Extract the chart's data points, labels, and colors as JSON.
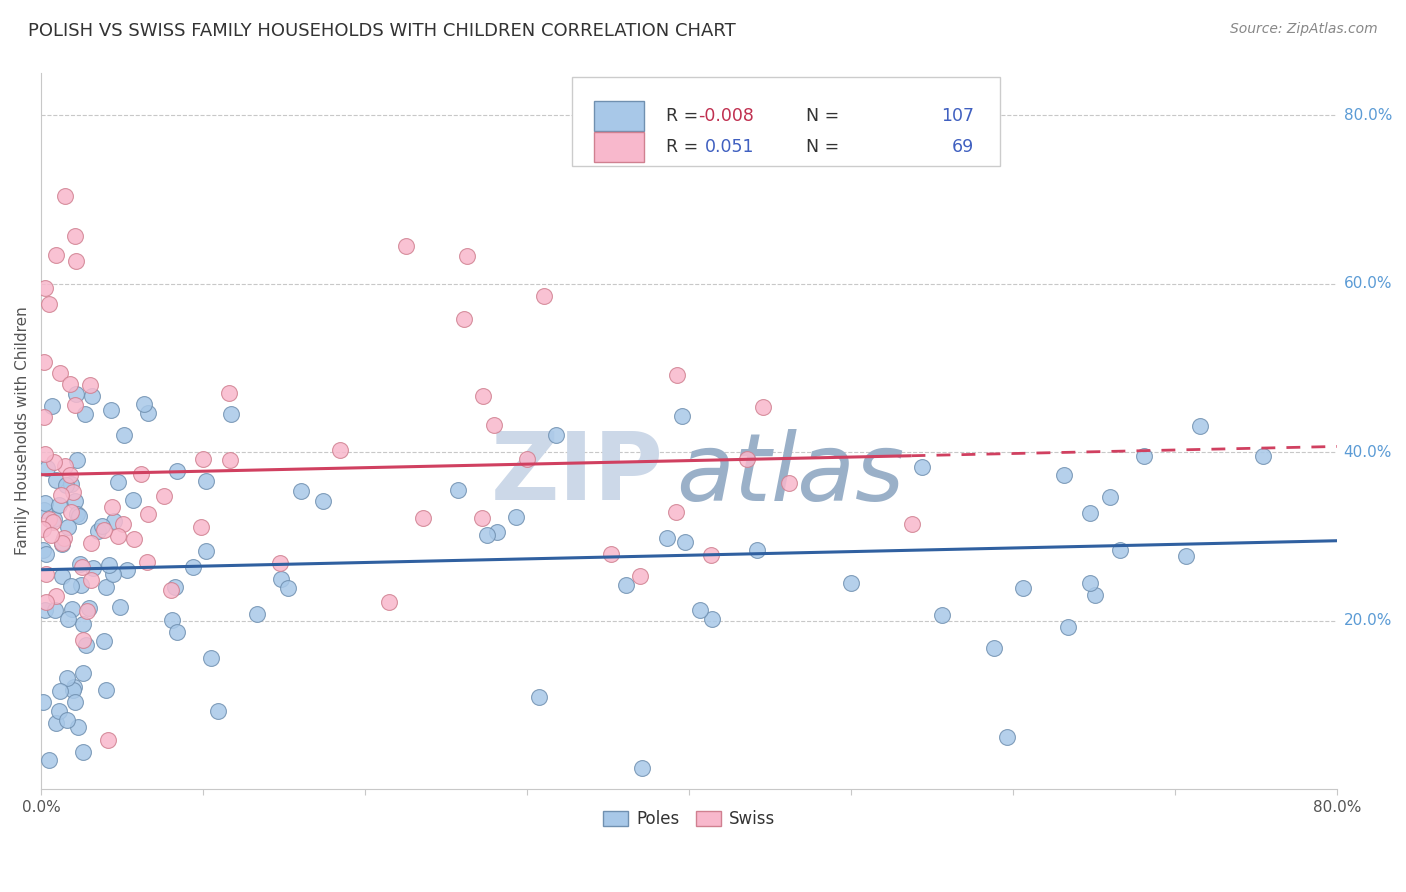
{
  "title": "POLISH VS SWISS FAMILY HOUSEHOLDS WITH CHILDREN CORRELATION CHART",
  "source": "Source: ZipAtlas.com",
  "ylabel": "Family Households with Children",
  "xlim": [
    0.0,
    0.8
  ],
  "ylim": [
    0.0,
    0.85
  ],
  "ytick_labels_right": [
    "80.0%",
    "60.0%",
    "40.0%",
    "20.0%"
  ],
  "ytick_positions_right": [
    0.8,
    0.6,
    0.4,
    0.2
  ],
  "legend_R_poles": "-0.008",
  "legend_N_poles": "107",
  "legend_R_swiss": "0.051",
  "legend_N_swiss": "69",
  "poles_scatter_color": "#a8c8e8",
  "swiss_scatter_color": "#f8b8cc",
  "poles_edge_color": "#7090b0",
  "swiss_edge_color": "#d08090",
  "poles_line_color": "#3060a0",
  "swiss_line_color": "#d04060",
  "legend_box_color": "#a8c8e8",
  "legend_swiss_box_color": "#f8b8cc",
  "R_text_color": "#4060c0",
  "R_neg_color": "#d04060",
  "grid_color": "#c8c8c8",
  "watermark_zip_color": "#ccd8e8",
  "watermark_atlas_color": "#9ab0c8",
  "background_color": "#ffffff"
}
